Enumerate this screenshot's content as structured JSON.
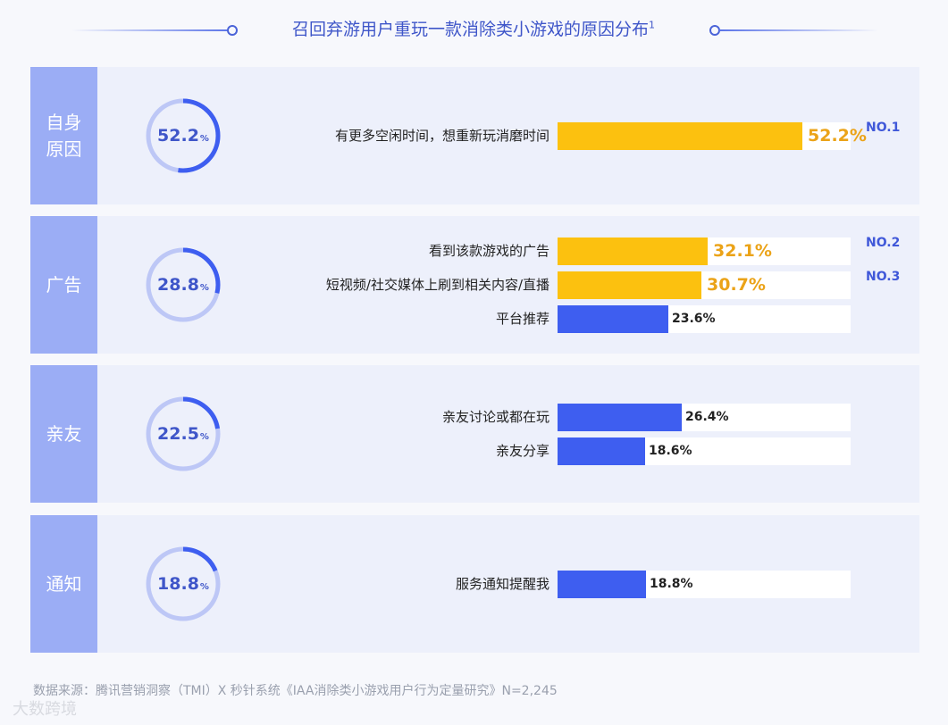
{
  "header": {
    "title": "召回弃游用户重玩一款消除类小游戏的原因分布",
    "footnote_mark": "1"
  },
  "chart_data": {
    "type": "bar",
    "x_unit": "%",
    "groups": [
      {
        "category": "自身\n原因",
        "total": 52.2,
        "total_label": "52.2",
        "items": [
          {
            "label": "有更多空闲时间，想重新玩消磨时间",
            "value": 52.2,
            "value_label": "52.2%",
            "rank": "NO.1",
            "highlight": true
          }
        ]
      },
      {
        "category": "广告",
        "total": 28.8,
        "total_label": "28.8",
        "items": [
          {
            "label": "看到该款游戏的广告",
            "value": 32.1,
            "value_label": "32.1%",
            "rank": "NO.2",
            "highlight": true
          },
          {
            "label": "短视频/社交媒体上刷到相关内容/直播",
            "value": 30.7,
            "value_label": "30.7%",
            "rank": "NO.3",
            "highlight": true
          },
          {
            "label": "平台推荐",
            "value": 23.6,
            "value_label": "23.6%",
            "rank": "",
            "highlight": false
          }
        ]
      },
      {
        "category": "亲友",
        "total": 22.5,
        "total_label": "22.5",
        "items": [
          {
            "label": "亲友讨论或都在玩",
            "value": 26.4,
            "value_label": "26.4%",
            "rank": "",
            "highlight": false
          },
          {
            "label": "亲友分享",
            "value": 18.6,
            "value_label": "18.6%",
            "rank": "",
            "highlight": false
          }
        ]
      },
      {
        "category": "通知",
        "total": 18.8,
        "total_label": "18.8",
        "items": [
          {
            "label": "服务通知提醒我",
            "value": 18.8,
            "value_label": "18.8%",
            "rank": "",
            "highlight": false
          }
        ]
      }
    ]
  },
  "footer": {
    "source": "数据来源：腾讯营销洞察（TMI）X 秒针系统《IAA消除类小游戏用户行为定量研究》N=2,245"
  },
  "watermark": {
    "text": "大数跨境"
  },
  "colors": {
    "accent": "#3e5ef0",
    "highlight": "#fcc10f",
    "highlight_text": "#eba318",
    "category_bg": "#9badf5",
    "section_bg": "#edf0fb",
    "title": "#3f56c9"
  }
}
